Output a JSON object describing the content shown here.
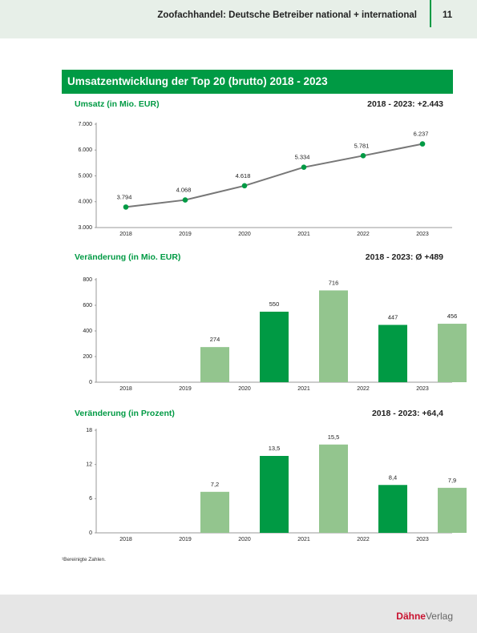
{
  "header": {
    "title": "Zoofachhandel: Deutsche Betreiber national + international",
    "page": "11"
  },
  "section_title": "Umsatzentwicklung der Top 20 (brutto) 2018 - 2023",
  "chart_data": [
    {
      "type": "line",
      "title": "Umsatz (in Mio. EUR)",
      "annotation": "2018 - 2023: +2.443",
      "categories": [
        "2018",
        "2019",
        "2020",
        "2021",
        "2022",
        "2023"
      ],
      "values": [
        3794,
        4068,
        4618,
        5334,
        5781,
        6237
      ],
      "value_labels": [
        "3.794",
        "4.068",
        "4.618",
        "5.334",
        "5.781",
        "6.237"
      ],
      "line_color": "#777777",
      "color": "#009a44",
      "ylim": [
        3000,
        7000
      ],
      "yticks": [
        {
          "value": 3000,
          "label": "3.000"
        },
        {
          "value": 4000,
          "label": "4.000"
        },
        {
          "value": 5000,
          "label": "5.000"
        },
        {
          "value": 6000,
          "label": "6.000"
        },
        {
          "value": 7000,
          "label": "7.000"
        }
      ]
    },
    {
      "type": "bar",
      "title": "Veränderung (in Mio. EUR)",
      "annotation": "2018 - 2023: Ø +489",
      "categories": [
        "2018",
        "2019",
        "2020",
        "2021",
        "2022",
        "2023"
      ],
      "values": [
        null,
        274,
        550,
        716,
        447,
        456
      ],
      "colors": [
        "#009a44",
        "#93c58e"
      ],
      "ylim": [
        0,
        800
      ],
      "yticks": [
        0,
        200,
        400,
        600,
        800
      ]
    },
    {
      "type": "bar",
      "title": "Veränderung (in Prozent)",
      "annotation": "2018 - 2023: +64,4",
      "categories": [
        "2018",
        "2019",
        "2020",
        "2021",
        "2022",
        "2023"
      ],
      "values": [
        null,
        7.2,
        13.5,
        15.5,
        8.4,
        7.9
      ],
      "value_labels": [
        null,
        "7,2",
        "13,5",
        "15,5",
        "8,4",
        "7,9"
      ],
      "colors": [
        "#009a44",
        "#93c58e"
      ],
      "ylim": [
        0,
        18
      ],
      "yticks": [
        0,
        6,
        12,
        18
      ]
    }
  ],
  "footnote": "¹Bereinigte Zahlen.",
  "footer": {
    "brand_bold": "Dähne",
    "brand": "Verlag"
  }
}
